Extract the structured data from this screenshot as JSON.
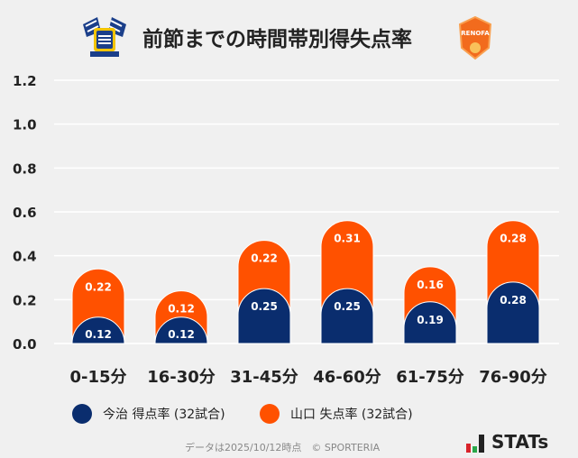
{
  "title": "前節までの時間帯別得失点率",
  "logos": {
    "left": "今治 crest",
    "right": "RENOFA"
  },
  "colors": {
    "home": "#0a2d6e",
    "away": "#ff5100",
    "grid": "#ffffff",
    "background": "#f0f0f0"
  },
  "chart_data": {
    "type": "bar",
    "stacked": true,
    "title": "前節までの時間帯別得失点率",
    "categories": [
      "0-15分",
      "16-30分",
      "31-45分",
      "46-60分",
      "61-75分",
      "76-90分"
    ],
    "series": [
      {
        "name": "今治 得点率 (32試合)",
        "values": [
          0.12,
          0.12,
          0.25,
          0.25,
          0.19,
          0.28
        ]
      },
      {
        "name": "山口 失点率 (32試合)",
        "values": [
          0.22,
          0.12,
          0.22,
          0.31,
          0.16,
          0.28
        ]
      }
    ],
    "ylim": [
      0,
      1.2
    ],
    "yticks": [
      "0.0",
      "0.2",
      "0.4",
      "0.6",
      "0.8",
      "1.0",
      "1.2"
    ],
    "grid": true,
    "legend": "bottom-left"
  },
  "legend": {
    "home": "今治 得点率 (32試合)",
    "away": "山口 失点率 (32試合)"
  },
  "footer": "データは2025/10/12時点　© SPORTERIA",
  "brand": "STATs"
}
